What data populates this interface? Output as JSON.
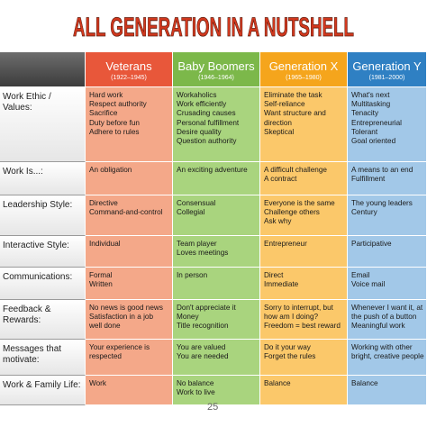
{
  "title": "ALL GENERATION IN A NUTSHELL",
  "columns": [
    {
      "name": "Veterans",
      "years": "(1922–1945)"
    },
    {
      "name": "Baby Boomers",
      "years": "(1946–1964)"
    },
    {
      "name": "Generation X",
      "years": "(1965–1980)"
    },
    {
      "name": "Generation Y",
      "years": "(1981–2000)"
    }
  ],
  "rows": [
    {
      "label": [
        "Work Ethic /",
        "Values:"
      ],
      "cells": [
        [
          "Hard work",
          "Respect authority",
          "Sacrifice",
          "Duty before fun",
          "Adhere to rules"
        ],
        [
          "Workaholics",
          "Work efficiently",
          "Crusading causes",
          "Personal fulfillment",
          "Desire quality",
          "Question authority"
        ],
        [
          "Eliminate the task",
          "Self-reliance",
          "Want structure and",
          "direction",
          "Skeptical"
        ],
        [
          "What's next",
          "Multitasking",
          "Tenacity",
          "Entrepreneurial",
          "Tolerant",
          "Goal oriented"
        ]
      ]
    },
    {
      "label": [
        "Work Is...:"
      ],
      "cells": [
        [
          "An obligation"
        ],
        [
          "An exciting adventure"
        ],
        [
          "A difficult challenge",
          "A contract"
        ],
        [
          "A means to an end",
          "Fulfillment"
        ]
      ]
    },
    {
      "label": [
        "Leadership Style:"
      ],
      "cells": [
        [
          "Directive",
          "Command-and-control"
        ],
        [
          "Consensual",
          "Collegial"
        ],
        [
          "Everyone is the same",
          "Challenge others",
          "Ask why"
        ],
        [
          "The young leaders",
          "Century"
        ]
      ]
    },
    {
      "label": [
        "Interactive Style:"
      ],
      "cells": [
        [
          "Individual"
        ],
        [
          "Team player",
          "Loves meetings"
        ],
        [
          "Entrepreneur"
        ],
        [
          "Participative"
        ]
      ]
    },
    {
      "label": [
        "Communications:"
      ],
      "cells": [
        [
          "Formal",
          "Written"
        ],
        [
          "In person"
        ],
        [
          "Direct",
          "Immediate"
        ],
        [
          "Email",
          "Voice mail"
        ]
      ]
    },
    {
      "label": [
        "Feedback &",
        "Rewards:"
      ],
      "cells": [
        [
          "No news is good news",
          "Satisfaction in a job",
          "well done"
        ],
        [
          "Don't appreciate it",
          "Money",
          "Title recognition"
        ],
        [
          "Sorry to interrupt, but",
          "how am I doing?",
          "Freedom = best reward"
        ],
        [
          "Whenever I want it, at",
          "the push of a button",
          "Meaningful work"
        ]
      ]
    },
    {
      "label": [
        "Messages that",
        "motivate:"
      ],
      "cells": [
        [
          "Your experience is",
          "respected"
        ],
        [
          "You are valued",
          "You are needed"
        ],
        [
          "Do it your way",
          "Forget the rules"
        ],
        [
          "Working with other",
          "bright, creative people"
        ]
      ]
    },
    {
      "label": [
        "Work & Family Life:"
      ],
      "cells": [
        [
          "Work"
        ],
        [
          "No balance",
          "Work to live"
        ],
        [
          "Balance"
        ],
        [
          "Balance"
        ]
      ]
    }
  ],
  "page_number": "25"
}
